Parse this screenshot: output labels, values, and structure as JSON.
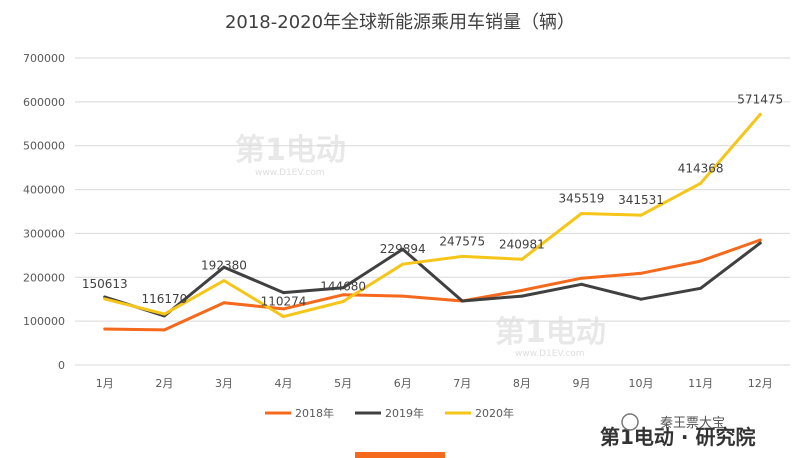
{
  "chart_data": {
    "type": "line",
    "title": "2018-2020年全球新能源乘用车销量（辆）",
    "categories": [
      "1月",
      "2月",
      "3月",
      "4月",
      "5月",
      "6月",
      "7月",
      "8月",
      "9月",
      "10月",
      "11月",
      "12月"
    ],
    "ylim": [
      0,
      700000
    ],
    "yticks": [
      0,
      100000,
      200000,
      300000,
      400000,
      500000,
      600000,
      700000
    ],
    "grid": true,
    "legend_position": "bottom",
    "series": [
      {
        "name": "2018年",
        "color": "#f4691c",
        "values": [
          82000,
          80000,
          142000,
          128000,
          160000,
          157000,
          146000,
          170000,
          198000,
          209000,
          237000,
          285000
        ],
        "labels": []
      },
      {
        "name": "2019年",
        "color": "#404040",
        "values": [
          155000,
          112000,
          223000,
          165000,
          176000,
          264000,
          146000,
          157000,
          184000,
          150000,
          175000,
          278000
        ],
        "labels": []
      },
      {
        "name": "2020年",
        "color": "#f5c518",
        "values": [
          150613,
          116170,
          192380,
          110274,
          144680,
          229894,
          247575,
          240981,
          345519,
          341531,
          414368,
          571475
        ],
        "labels": [
          "150613",
          "116170",
          "192380",
          "110274",
          "144680",
          "229894",
          "247575",
          "240981",
          "345519",
          "341531",
          "414368",
          "571475"
        ]
      }
    ]
  },
  "watermark": {
    "brand": "第1电动",
    "url": "www.D1EV.com"
  },
  "footer": {
    "brand": "第1电动 · 研究院",
    "wechat": "秦王票大宝"
  }
}
